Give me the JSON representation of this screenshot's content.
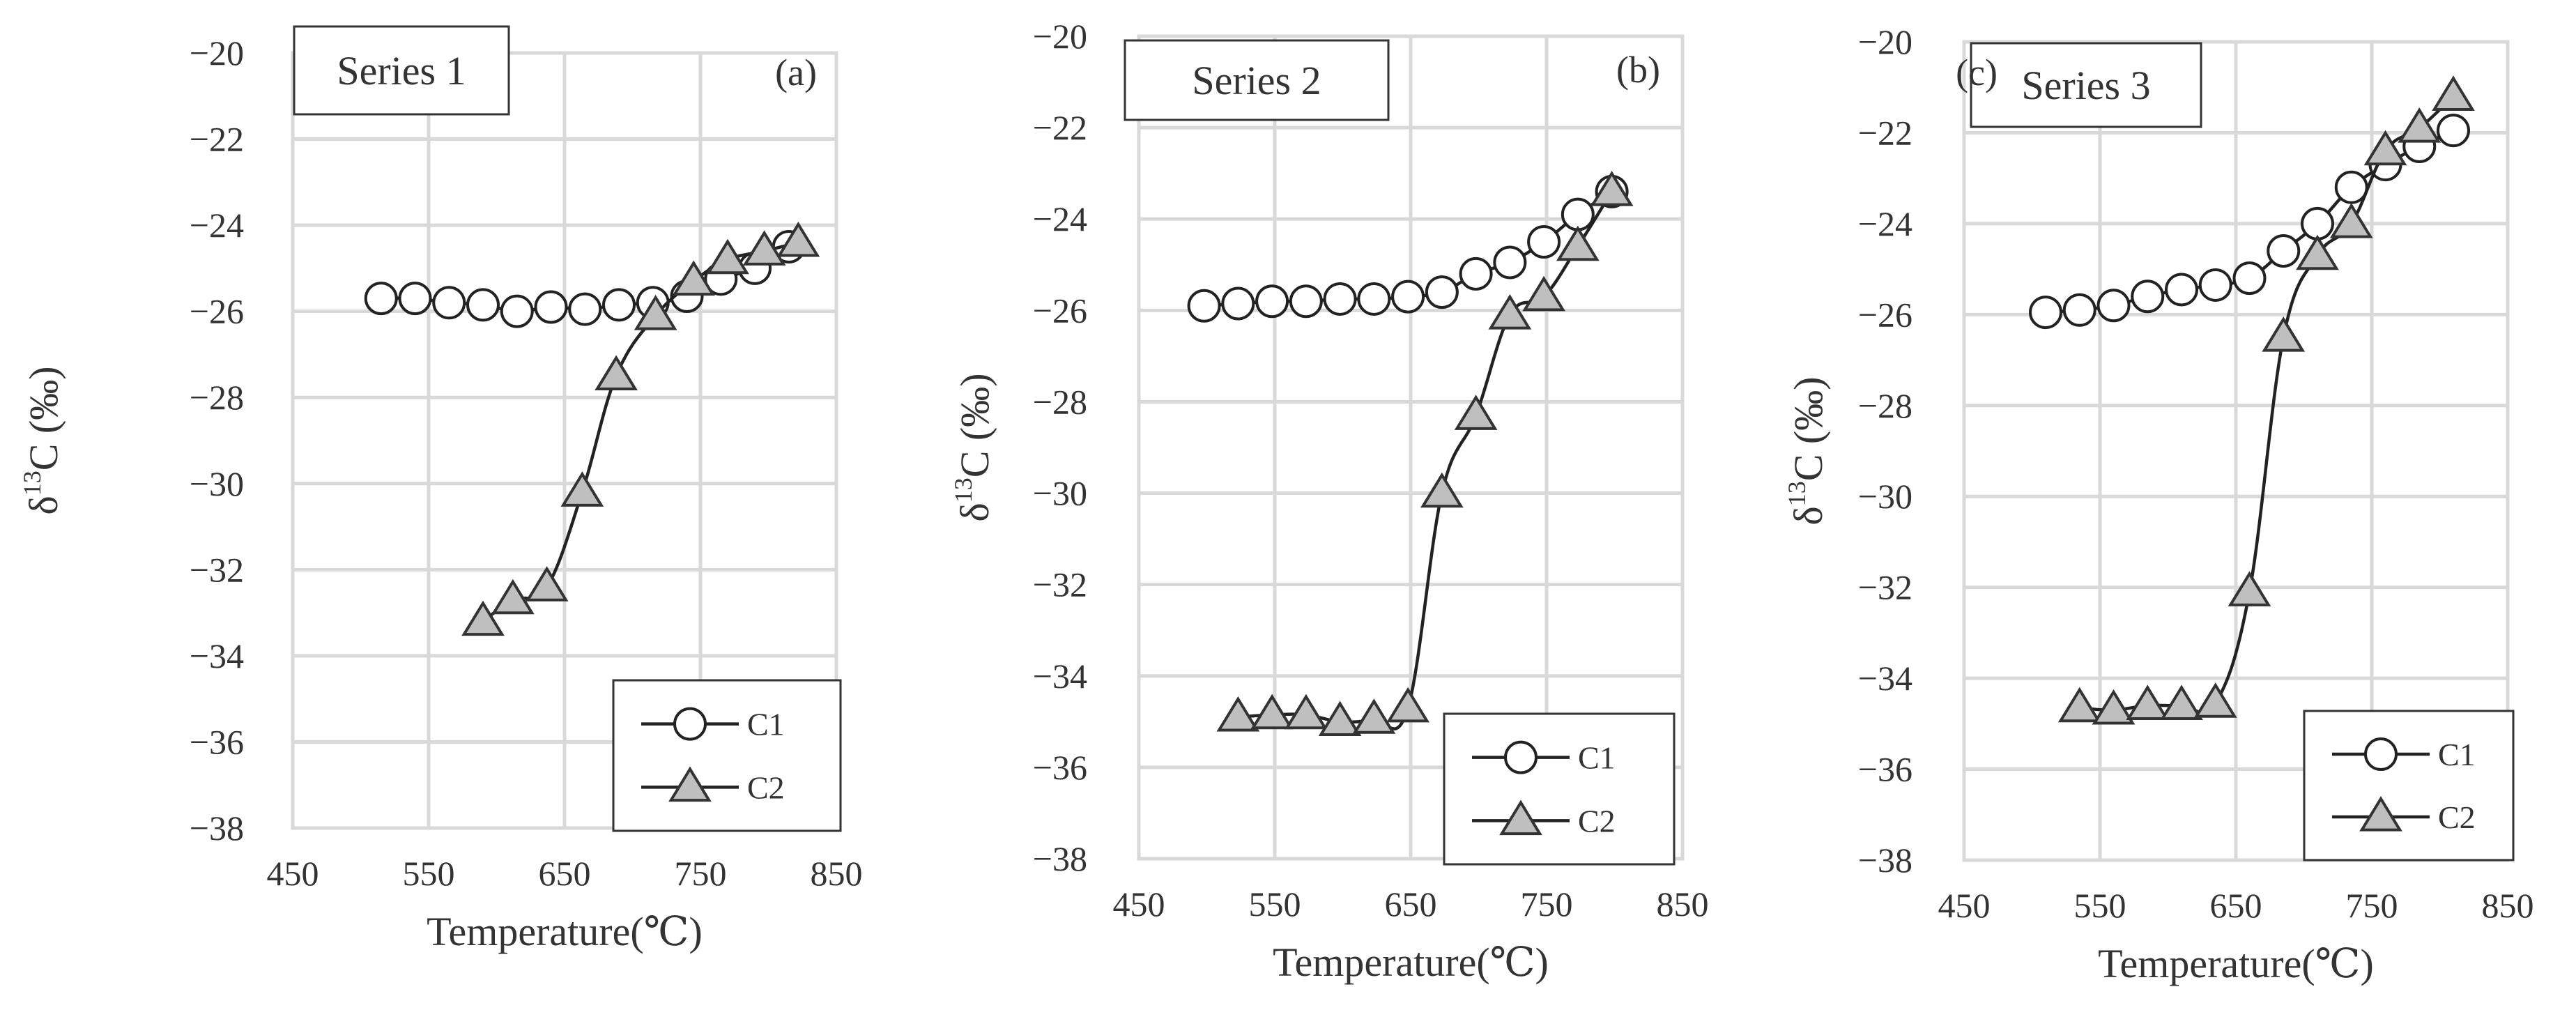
{
  "chart_data": [
    {
      "type": "line",
      "series_tag": "Series 1",
      "panel_letter": "(a)",
      "xlabel": "Temperature(℃)",
      "ylabel_prefix": "δ",
      "ylabel_sup": "13",
      "ylabel_suffix": "C (‰)",
      "xlim": [
        450,
        850
      ],
      "ylim": [
        -38,
        -20
      ],
      "xticks": [
        450,
        550,
        650,
        750,
        850
      ],
      "yticks": [
        -20,
        -22,
        -24,
        -26,
        -28,
        -30,
        -32,
        -34,
        -36,
        -38
      ],
      "xtick_labels": [
        "450",
        "550",
        "650",
        "750",
        "850"
      ],
      "ytick_labels": [
        "−20",
        "−22",
        "−24",
        "−26",
        "−28",
        "−30",
        "−32",
        "−34",
        "−36",
        "−38"
      ],
      "legend_position": "bottom-right",
      "series": [
        {
          "name": "C1",
          "marker": "circle",
          "x": [
            515,
            540,
            565,
            590,
            615,
            640,
            665,
            690,
            715,
            740,
            765,
            790,
            815
          ],
          "y": [
            -25.7,
            -25.7,
            -25.8,
            -25.85,
            -26.0,
            -25.9,
            -25.95,
            -25.85,
            -25.8,
            -25.65,
            -25.25,
            -25.0,
            -24.5
          ]
        },
        {
          "name": "C2",
          "marker": "triangle",
          "x": [
            590,
            612,
            637,
            663,
            688,
            717,
            745,
            770,
            797,
            822
          ],
          "y": [
            -33.2,
            -32.7,
            -32.4,
            -30.2,
            -27.5,
            -26.1,
            -25.3,
            -24.8,
            -24.6,
            -24.4
          ]
        }
      ]
    },
    {
      "type": "line",
      "series_tag": "Series 2",
      "panel_letter": "(b)",
      "xlabel": "Temperature(℃)",
      "ylabel_prefix": "δ",
      "ylabel_sup": "13",
      "ylabel_suffix": "C (‰)",
      "xlim": [
        450,
        850
      ],
      "ylim": [
        -38,
        -20
      ],
      "xticks": [
        450,
        550,
        650,
        750,
        850
      ],
      "yticks": [
        -20,
        -22,
        -24,
        -26,
        -28,
        -30,
        -32,
        -34,
        -36,
        -38
      ],
      "xtick_labels": [
        "450",
        "550",
        "650",
        "750",
        "850"
      ],
      "ytick_labels": [
        "−20",
        "−22",
        "−24",
        "−26",
        "−28",
        "−30",
        "−32",
        "−34",
        "−36",
        "−38"
      ],
      "legend_position": "bottom-right",
      "series": [
        {
          "name": "C1",
          "marker": "circle",
          "x": [
            498,
            523,
            548,
            573,
            598,
            623,
            648,
            673,
            698,
            723,
            748,
            773,
            798
          ],
          "y": [
            -25.9,
            -25.85,
            -25.8,
            -25.8,
            -25.75,
            -25.75,
            -25.7,
            -25.6,
            -25.2,
            -24.95,
            -24.5,
            -23.9,
            -23.4
          ]
        },
        {
          "name": "C2",
          "marker": "triangle",
          "x": [
            523,
            548,
            573,
            598,
            623,
            648,
            673,
            698,
            723,
            748,
            773,
            798
          ],
          "y": [
            -34.9,
            -34.85,
            -34.85,
            -35.0,
            -34.95,
            -34.7,
            -30.0,
            -28.3,
            -26.1,
            -25.7,
            -24.6,
            -23.4
          ]
        }
      ]
    },
    {
      "type": "line",
      "series_tag": "Series 3",
      "panel_letter": "(c)",
      "xlabel": "Temperature(℃)",
      "ylabel_prefix": "δ",
      "ylabel_sup": "13",
      "ylabel_suffix": "C (‰)",
      "xlim": [
        450,
        850
      ],
      "ylim": [
        -38,
        -20
      ],
      "xticks": [
        450,
        550,
        650,
        750,
        850
      ],
      "yticks": [
        -20,
        -22,
        -24,
        -26,
        -28,
        -30,
        -32,
        -34,
        -36,
        -38
      ],
      "xtick_labels": [
        "450",
        "550",
        "650",
        "750",
        "850"
      ],
      "ytick_labels": [
        "−20",
        "−22",
        "−24",
        "−26",
        "−28",
        "−30",
        "−32",
        "−34",
        "−36",
        "−38"
      ],
      "legend_position": "bottom-right",
      "series": [
        {
          "name": "C1",
          "marker": "circle",
          "x": [
            510,
            535,
            560,
            585,
            610,
            635,
            660,
            685,
            710,
            735,
            760,
            785,
            810
          ],
          "y": [
            -25.95,
            -25.9,
            -25.8,
            -25.6,
            -25.45,
            -25.35,
            -25.2,
            -24.6,
            -24.0,
            -23.2,
            -22.7,
            -22.3,
            -21.95
          ]
        },
        {
          "name": "C2",
          "marker": "triangle",
          "x": [
            535,
            560,
            585,
            610,
            635,
            660,
            685,
            710,
            735,
            760,
            785,
            810
          ],
          "y": [
            -34.65,
            -34.7,
            -34.6,
            -34.6,
            -34.55,
            -32.1,
            -26.5,
            -24.7,
            -24.0,
            -22.4,
            -21.9,
            -21.2
          ]
        }
      ]
    }
  ]
}
